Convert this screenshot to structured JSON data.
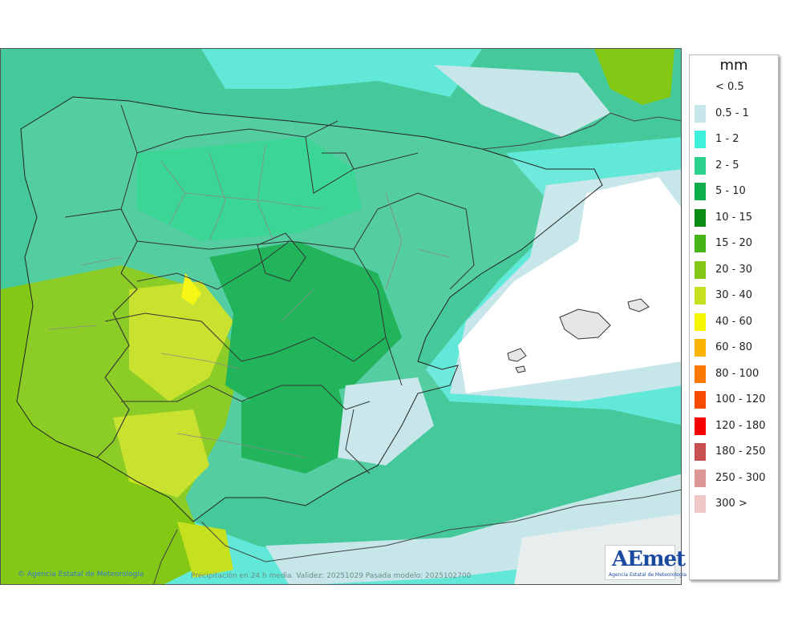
{
  "map": {
    "credit": "© Agencia Estatal de Meteorología",
    "caption": "Precipitación en 24 h media. Validez: 20251029 Pasada modelo: 2025102700"
  },
  "logo": {
    "text": "AEmet",
    "subtitle": "Agencia Estatal de Meteorología"
  },
  "legend": {
    "title": "mm",
    "items": [
      {
        "label": "< 0.5",
        "color": "#ffffff"
      },
      {
        "label": "0.5 - 1",
        "color": "#c6e6ea"
      },
      {
        "label": "1 - 2",
        "color": "#3ef0dc"
      },
      {
        "label": "2 - 5",
        "color": "#2bd28e"
      },
      {
        "label": "5 - 10",
        "color": "#0fae4c"
      },
      {
        "label": "10 - 15",
        "color": "#0a8c14"
      },
      {
        "label": "15 - 20",
        "color": "#46b414"
      },
      {
        "label": "20 - 30",
        "color": "#82c814"
      },
      {
        "label": "30 - 40",
        "color": "#c4e01e"
      },
      {
        "label": "40 - 60",
        "color": "#f6f600"
      },
      {
        "label": "60 - 80",
        "color": "#fab400"
      },
      {
        "label": "80 - 100",
        "color": "#f87800"
      },
      {
        "label": "100 - 120",
        "color": "#f84a00"
      },
      {
        "label": "120 - 180",
        "color": "#f80000"
      },
      {
        "label": "180 - 250",
        "color": "#c85050"
      },
      {
        "label": "250 - 300",
        "color": "#dc9696"
      },
      {
        "label": "300 >",
        "color": "#f0c8c8"
      }
    ]
  }
}
